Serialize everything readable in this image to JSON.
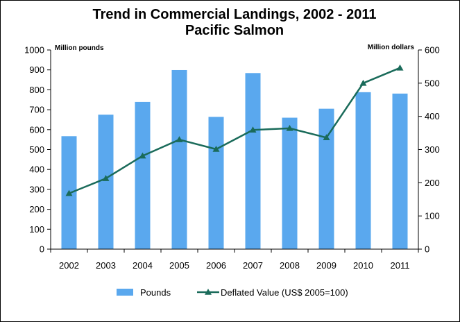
{
  "chart_data": {
    "type": "bar",
    "title": "Trend in Commercial Landings, 2002 - 2011",
    "subtitle": "Pacific Salmon",
    "categories": [
      "2002",
      "2003",
      "2004",
      "2005",
      "2006",
      "2007",
      "2008",
      "2009",
      "2010",
      "2011"
    ],
    "series": [
      {
        "name": "Pounds",
        "type": "bar",
        "axis": "left",
        "color": "#5aa8ee",
        "values": [
          567,
          675,
          739,
          899,
          664,
          884,
          660,
          705,
          788,
          781
        ]
      },
      {
        "name": "Deflated Value (US$ 2005=100)",
        "type": "line",
        "axis": "right",
        "color": "#1a6b5a",
        "marker": "triangle",
        "values": [
          168,
          213,
          281,
          330,
          301,
          359,
          364,
          336,
          500,
          546
        ]
      }
    ],
    "y_left": {
      "label": "Million pounds",
      "range": [
        0,
        1000
      ],
      "ticks": [
        "0",
        "100",
        "200",
        "300",
        "400",
        "500",
        "600",
        "700",
        "800",
        "900",
        "1000"
      ]
    },
    "y_right": {
      "label": "Million dollars",
      "range": [
        0,
        600
      ],
      "ticks": [
        "0",
        "100",
        "200",
        "300",
        "400",
        "500",
        "600"
      ]
    },
    "grid": false,
    "legend_position": "bottom"
  }
}
